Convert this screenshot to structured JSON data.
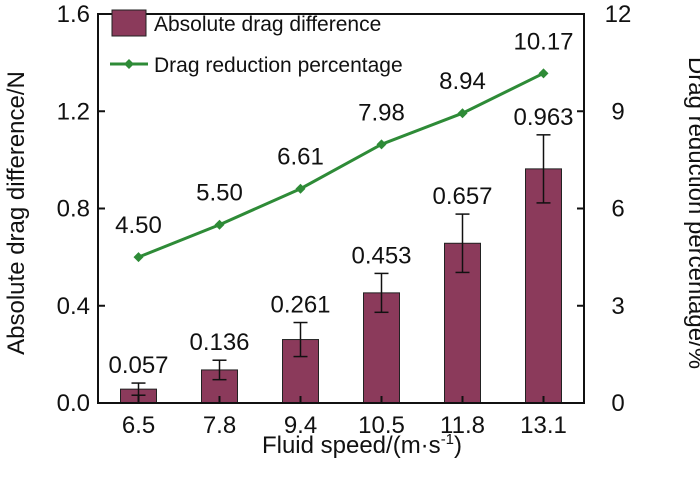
{
  "chart_data": {
    "type": "bar+line",
    "categories": [
      "6.5",
      "7.8",
      "9.4",
      "10.5",
      "11.8",
      "13.1"
    ],
    "xlabel": "Fluid speed/(m·s",
    "xlabel_superscript": "-1",
    "xlabel_close": ")",
    "series": [
      {
        "name": "Absolute drag difference",
        "type": "bar",
        "axis": "left",
        "color": "#8B3A5B",
        "values": [
          0.057,
          0.136,
          0.261,
          0.453,
          0.657,
          0.963
        ],
        "errors": [
          0.025,
          0.04,
          0.07,
          0.08,
          0.12,
          0.14
        ],
        "labels": [
          "0.057",
          "0.136",
          "0.261",
          "0.453",
          "0.657",
          "0.963"
        ]
      },
      {
        "name": "Drag reduction percentage",
        "type": "line",
        "axis": "right",
        "color": "#2E8B37",
        "values": [
          4.5,
          5.5,
          6.61,
          7.98,
          8.94,
          10.17
        ],
        "labels": [
          "4.50",
          "5.50",
          "6.61",
          "7.98",
          "8.94",
          "10.17"
        ]
      }
    ],
    "y_left": {
      "label": "Absolute drag difference/N",
      "range": [
        0,
        1.6
      ],
      "ticks": [
        0.0,
        0.4,
        0.8,
        1.2,
        1.6
      ],
      "tick_labels": [
        "0.0",
        "0.4",
        "0.8",
        "1.2",
        "1.6"
      ]
    },
    "y_right": {
      "label": "Drag reduction percentage/%",
      "range": [
        0,
        12
      ],
      "ticks": [
        0,
        3,
        6,
        9,
        12
      ],
      "tick_labels": [
        "0",
        "3",
        "6",
        "9",
        "12"
      ]
    },
    "legend": {
      "position": "top-left",
      "entries": [
        "Absolute drag difference",
        "Drag reduction percentage"
      ]
    },
    "grid": false
  }
}
